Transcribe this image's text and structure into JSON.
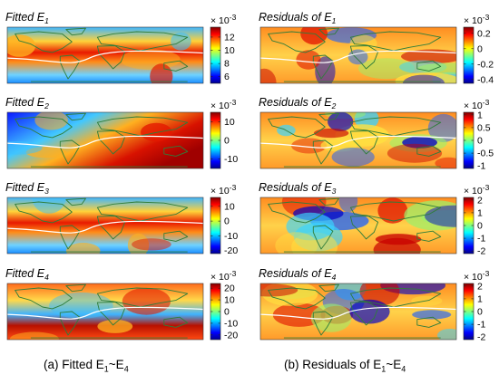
{
  "colors": {
    "colormap": [
      "#00008f",
      "#0000ff",
      "#0080ff",
      "#00ffff",
      "#80ff80",
      "#ffff00",
      "#ff8000",
      "#ff0000",
      "#800000"
    ],
    "coastline": "#2f7d3a",
    "equator_line": "#ffffff"
  },
  "captions": {
    "a": {
      "prefix": "(a) Fitted E",
      "s1": "1",
      "mid": "~E",
      "s2": "4"
    },
    "b": {
      "prefix": "(b) Residuals of E",
      "s1": "1",
      "mid": "~E",
      "s2": "4"
    }
  },
  "chart_data": [
    {
      "type": "heatmap",
      "panel": "fitted-e1",
      "title": {
        "prefix": "Fitted E",
        "sub": "1"
      },
      "colorbar": {
        "exponent_prefix": "× 10",
        "exponent": "-3",
        "ticks": [
          "12",
          "10",
          "8",
          "6"
        ],
        "tick_values": [
          12,
          10,
          8,
          6
        ],
        "range": [
          5,
          13.5
        ]
      },
      "pattern": "band",
      "has_equator_line": true
    },
    {
      "type": "heatmap",
      "panel": "residuals-e1",
      "title": {
        "prefix": "Residuals of E",
        "sub": "1"
      },
      "colorbar": {
        "exponent_prefix": "× 10",
        "exponent": "-3",
        "ticks": [
          "0.2",
          "0",
          "-0.2",
          "-0.4"
        ],
        "tick_values": [
          0.2,
          0,
          -0.2,
          -0.4
        ],
        "range": [
          -0.45,
          0.28
        ]
      },
      "pattern": "residual",
      "has_equator_line": true
    },
    {
      "type": "heatmap",
      "panel": "fitted-e2",
      "title": {
        "prefix": "Fitted E",
        "sub": "2"
      },
      "colorbar": {
        "exponent_prefix": "× 10",
        "exponent": "-3",
        "ticks": [
          "10",
          "0",
          "-10"
        ],
        "tick_values": [
          10,
          0,
          -10
        ],
        "range": [
          -15,
          15
        ]
      },
      "pattern": "diagonal",
      "has_equator_line": true
    },
    {
      "type": "heatmap",
      "panel": "residuals-e2",
      "title": {
        "prefix": "Residuals of E",
        "sub": "2"
      },
      "colorbar": {
        "exponent_prefix": "× 10",
        "exponent": "-3",
        "ticks": [
          "1",
          "0.5",
          "0",
          "-0.5",
          "-1"
        ],
        "tick_values": [
          1,
          0.5,
          0,
          -0.5,
          -1
        ],
        "range": [
          -1.1,
          1.1
        ]
      },
      "pattern": "residual",
      "has_equator_line": true
    },
    {
      "type": "heatmap",
      "panel": "fitted-e3",
      "title": {
        "prefix": "Fitted E",
        "sub": "3"
      },
      "colorbar": {
        "exponent_prefix": "× 10",
        "exponent": "-3",
        "ticks": [
          "10",
          "0",
          "-10",
          "-20"
        ],
        "tick_values": [
          10,
          0,
          -10,
          -20
        ],
        "range": [
          -22,
          16
        ]
      },
      "pattern": "band",
      "has_equator_line": true
    },
    {
      "type": "heatmap",
      "panel": "residuals-e3",
      "title": {
        "prefix": "Residuals of E",
        "sub": "3"
      },
      "colorbar": {
        "exponent_prefix": "× 10",
        "exponent": "-3",
        "ticks": [
          "2",
          "1",
          "0",
          "-1",
          "-2"
        ],
        "tick_values": [
          2,
          1,
          0,
          -1,
          -2
        ],
        "range": [
          -2.2,
          2.2
        ]
      },
      "pattern": "residual",
      "has_equator_line": false
    },
    {
      "type": "heatmap",
      "panel": "fitted-e4",
      "title": {
        "prefix": "Fitted E",
        "sub": "4"
      },
      "colorbar": {
        "exponent_prefix": "× 10",
        "exponent": "-3",
        "ticks": [
          "20",
          "10",
          "0",
          "-10",
          "-20"
        ],
        "tick_values": [
          20,
          10,
          0,
          -10,
          -20
        ],
        "range": [
          -24,
          24
        ]
      },
      "pattern": "split",
      "has_equator_line": true
    },
    {
      "type": "heatmap",
      "panel": "residuals-e4",
      "title": {
        "prefix": "Residuals of E",
        "sub": "4"
      },
      "colorbar": {
        "exponent_prefix": "× 10",
        "exponent": "-3",
        "ticks": [
          "2",
          "1",
          "0",
          "-1",
          "-2"
        ],
        "tick_values": [
          2,
          1,
          0,
          -1,
          -2
        ],
        "range": [
          -2.2,
          2.2
        ]
      },
      "pattern": "residual",
      "has_equator_line": true
    }
  ]
}
